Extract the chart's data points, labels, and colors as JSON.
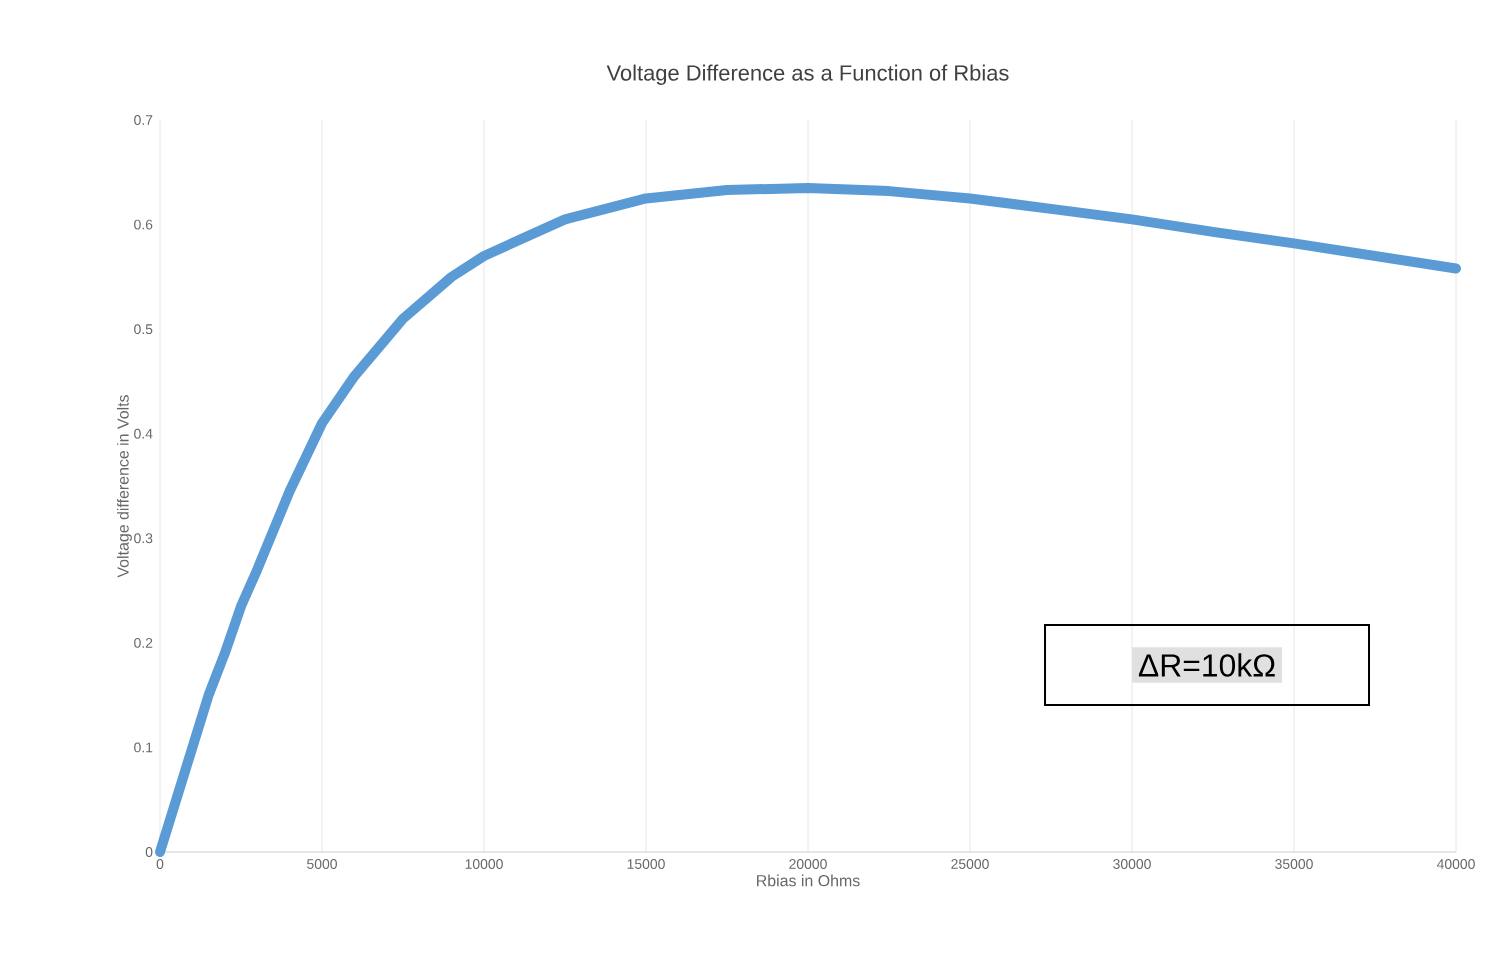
{
  "chart_data": {
    "type": "line",
    "title": "Voltage Difference as a Function of Rbias",
    "xlabel": "Rbias in Ohms",
    "ylabel": "Voltage difference in Volts",
    "x": [
      0,
      500,
      1000,
      1500,
      2000,
      2500,
      3000,
      4000,
      5000,
      6000,
      7500,
      9000,
      10000,
      12500,
      15000,
      17500,
      20000,
      22500,
      25000,
      27500,
      30000,
      32500,
      35000,
      37500,
      40000
    ],
    "series": [
      {
        "color": "#5b9bd5",
        "values": [
          0,
          0.05,
          0.1,
          0.15,
          0.19,
          0.235,
          0.27,
          0.345,
          0.41,
          0.455,
          0.51,
          0.55,
          0.57,
          0.605,
          0.625,
          0.633,
          0.635,
          0.632,
          0.625,
          0.615,
          0.605,
          0.593,
          0.582,
          0.57,
          0.558
        ]
      }
    ],
    "xlim": [
      0,
      40000
    ],
    "xticks": [
      0,
      5000,
      10000,
      15000,
      20000,
      25000,
      30000,
      35000,
      40000
    ],
    "ylim": [
      0,
      0.7
    ],
    "yticks": [
      0,
      0.1,
      0.2,
      0.3,
      0.4,
      0.5,
      0.6,
      0.7
    ],
    "grid": "x",
    "marker": "none",
    "line_style": "solid",
    "annotations": [
      "ΔR=10kΩ"
    ]
  }
}
